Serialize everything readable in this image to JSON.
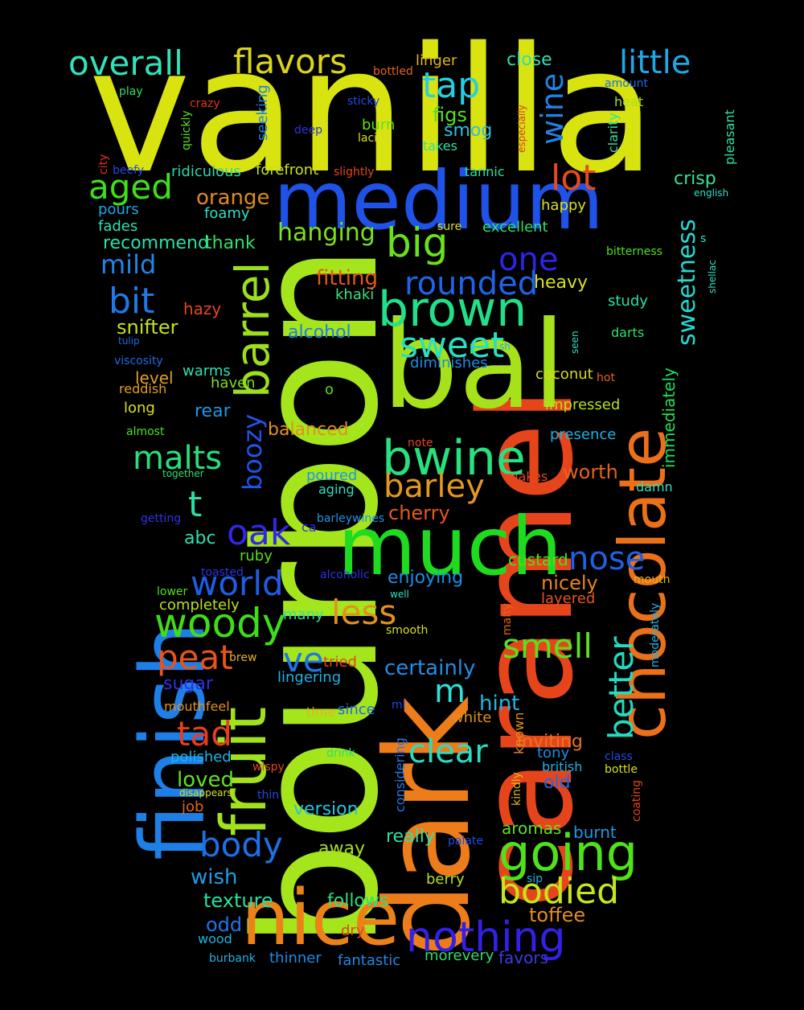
{
  "words": [
    {
      "t": "vanilla",
      "c": "#d8e310"
    },
    {
      "t": "bourbon",
      "c": "#a4e61b"
    },
    {
      "t": "caramel",
      "c": "#e6451c"
    },
    {
      "t": "dark",
      "c": "#ec7d1a"
    },
    {
      "t": "finish",
      "c": "#1e7fe6"
    },
    {
      "t": "bal",
      "c": "#a6e11b"
    },
    {
      "t": "medium",
      "c": "#1f52e6"
    },
    {
      "t": "chocolate",
      "c": "#eb7019"
    },
    {
      "t": "much",
      "c": "#1edb1f"
    },
    {
      "t": "nice",
      "c": "#ec811a"
    },
    {
      "t": "fruit",
      "c": "#a1e21c"
    },
    {
      "t": "brown",
      "c": "#22e089"
    },
    {
      "t": "bwine",
      "c": "#27e17f"
    },
    {
      "t": "sweet",
      "c": "#28dfc2"
    },
    {
      "t": "barrel",
      "c": "#9ddf1c"
    },
    {
      "t": "going",
      "c": "#4fe21a"
    },
    {
      "t": "nothing",
      "c": "#3320e6"
    },
    {
      "t": "woody",
      "c": "#3fdc1a"
    },
    {
      "t": "better",
      "c": "#22dbc1"
    },
    {
      "t": "world",
      "c": "#1e5ee6"
    },
    {
      "t": "bodied",
      "c": "#c4e61a"
    },
    {
      "t": "little",
      "c": "#1fa7e6"
    },
    {
      "t": "overall",
      "c": "#30e3bb"
    },
    {
      "t": "flavors",
      "c": "#dcd31c"
    },
    {
      "t": "big",
      "c": "#68e21a"
    },
    {
      "t": "rounded",
      "c": "#1f63e6"
    },
    {
      "t": "sweetness",
      "c": "#24dbd2"
    },
    {
      "t": "barley",
      "c": "#e39720"
    },
    {
      "t": "body",
      "c": "#1f6fe6"
    },
    {
      "t": "smell",
      "c": "#5ae11c"
    },
    {
      "t": "clear",
      "c": "#27ddc2"
    },
    {
      "t": "tap",
      "c": "#23cfe2"
    },
    {
      "t": "aged",
      "c": "#3ee01a"
    },
    {
      "t": "lot",
      "c": "#e64a1c"
    },
    {
      "t": "malts",
      "c": "#26e07b"
    },
    {
      "t": "oak",
      "c": "#3226e6"
    },
    {
      "t": "nose",
      "c": "#1f61e6"
    },
    {
      "t": "bit",
      "c": "#1f79e6"
    },
    {
      "t": "peat",
      "c": "#e6541c"
    },
    {
      "t": "tad",
      "c": "#e63d1c"
    },
    {
      "t": "less",
      "c": "#e2901e"
    },
    {
      "t": "wine",
      "c": "#2082e3"
    },
    {
      "t": "one",
      "c": "#3023e6"
    },
    {
      "t": "boozy",
      "c": "#1f54e6"
    },
    {
      "t": "ve",
      "c": "#1f75e6"
    },
    {
      "t": "t",
      "c": "#28e0a8"
    },
    {
      "t": "mild",
      "c": "#1f86e6"
    },
    {
      "t": "m",
      "c": "#2ee0d9"
    },
    {
      "t": "hanging",
      "c": "#7de11c"
    },
    {
      "t": "toffee",
      "c": "#e38c1e"
    },
    {
      "t": "snifter",
      "c": "#c8e01c"
    },
    {
      "t": "certainly",
      "c": "#1f8fe6"
    },
    {
      "t": "orange",
      "c": "#e08b1e"
    },
    {
      "t": "fitting",
      "c": "#e6571c"
    },
    {
      "t": "immediately",
      "c": "#1ee05a"
    },
    {
      "t": "hint",
      "c": "#1fb6e6"
    },
    {
      "t": "loved",
      "c": "#64e11c"
    },
    {
      "t": "close",
      "c": "#2edfb0"
    },
    {
      "t": "figs",
      "c": "#58e01c"
    },
    {
      "t": "smog",
      "c": "#2ebee0"
    },
    {
      "t": "burn",
      "c": "#5ee01c"
    },
    {
      "t": "crisp",
      "c": "#3ae096"
    },
    {
      "t": "heavy",
      "c": "#d8e01c"
    },
    {
      "t": "cherry",
      "c": "#e6581c"
    },
    {
      "t": "worth",
      "c": "#e6631c"
    },
    {
      "t": "alcohol",
      "c": "#1f7de6"
    },
    {
      "t": "enjoying",
      "c": "#1f8de6"
    },
    {
      "t": "nicely",
      "c": "#e6851c"
    },
    {
      "t": "layered",
      "c": "#e6541c"
    },
    {
      "t": "inviting",
      "c": "#e6751c"
    },
    {
      "t": "recommend",
      "c": "#29e0a8"
    },
    {
      "t": "thank",
      "c": "#2ee06a"
    },
    {
      "t": "balanced",
      "c": "#e3901e"
    },
    {
      "t": "version",
      "c": "#24c5e0"
    },
    {
      "t": "away",
      "c": "#a9e01c"
    },
    {
      "t": "really",
      "c": "#30e0a6"
    },
    {
      "t": "follows",
      "c": "#2be07a"
    },
    {
      "t": "texture",
      "c": "#28e09e"
    },
    {
      "t": "wish",
      "c": "#1f9ce6"
    },
    {
      "t": "odd",
      "c": "#1f75e6"
    },
    {
      "t": "seeking",
      "c": "#1f82e6"
    },
    {
      "t": "forefront",
      "c": "#c9e01c"
    },
    {
      "t": "ridiculous",
      "c": "#28d7a8"
    },
    {
      "t": "khaki",
      "c": "#3ae080"
    },
    {
      "t": "diminishes",
      "c": "#1f8ae6"
    },
    {
      "t": "coconut",
      "c": "#d8d81c"
    },
    {
      "t": "impressed",
      "c": "#b9e01c"
    },
    {
      "t": "presence",
      "c": "#1fb2e6"
    },
    {
      "t": "custard",
      "c": "#4fe01c"
    },
    {
      "t": "aromas",
      "c": "#64e01c"
    },
    {
      "t": "burnt",
      "c": "#1f96e6"
    },
    {
      "t": "berry",
      "c": "#b7e01c"
    },
    {
      "t": "old",
      "c": "#1f6ae6"
    },
    {
      "t": "tony",
      "c": "#1f8ae6"
    },
    {
      "t": "favors",
      "c": "#3a3ae6"
    },
    {
      "t": "morevery",
      "c": "#2edf6a"
    },
    {
      "t": "fantastic",
      "c": "#1f8ae6"
    },
    {
      "t": "thinner",
      "c": "#1f8ae6"
    },
    {
      "t": "level",
      "c": "#e3a01e"
    },
    {
      "t": "warms",
      "c": "#2ee0b0"
    },
    {
      "t": "haven",
      "c": "#7be01c"
    },
    {
      "t": "rear",
      "c": "#1f96e6"
    },
    {
      "t": "long",
      "c": "#d8e01c"
    },
    {
      "t": "abc",
      "c": "#2ee0b0"
    },
    {
      "t": "ruby",
      "c": "#52e01c"
    },
    {
      "t": "completely",
      "c": "#bde01c"
    },
    {
      "t": "many",
      "c": "#2ee0a6"
    },
    {
      "t": "sugar",
      "c": "#3030e6"
    },
    {
      "t": "lingering",
      "c": "#1fb2e6"
    },
    {
      "t": "since",
      "c": "#1f6ae6"
    },
    {
      "t": "considering",
      "c": "#1f78e6"
    },
    {
      "t": "polished",
      "c": "#1fb2e6"
    },
    {
      "t": "job",
      "c": "#e6631c"
    },
    {
      "t": "excellent",
      "c": "#2ee06a"
    },
    {
      "t": "happy",
      "c": "#d8e01c"
    },
    {
      "t": "pours",
      "c": "#1fa8e6"
    },
    {
      "t": "fades",
      "c": "#2ee0b0"
    },
    {
      "t": "foamy",
      "c": "#2ee0c2"
    },
    {
      "t": "hazy",
      "c": "#e6451c"
    },
    {
      "t": "reddish",
      "c": "#e3a01e"
    },
    {
      "t": "linger",
      "c": "#e3b41e"
    },
    {
      "t": "heat",
      "c": "#a6e01c"
    },
    {
      "t": "study",
      "c": "#2ee0a6"
    },
    {
      "t": "pleasant",
      "c": "#2ee0a6"
    },
    {
      "t": "clarity",
      "c": "#2ee0a6"
    },
    {
      "t": "moderately",
      "c": "#1fb2e6"
    },
    {
      "t": "bitterness",
      "c": "#4fe01c"
    },
    {
      "t": "darts",
      "c": "#2ee06a"
    },
    {
      "t": "quickly",
      "c": "#52e01c"
    },
    {
      "t": "takes",
      "c": "#2ee0a6"
    },
    {
      "t": "tannic",
      "c": "#2ee0a6"
    },
    {
      "t": "lacing",
      "c": "#d8e01c"
    },
    {
      "t": "bottled",
      "c": "#e6631c"
    },
    {
      "t": "sticky",
      "c": "#1f4ae6"
    },
    {
      "t": "deep",
      "c": "#3030e6"
    },
    {
      "t": "crazy",
      "c": "#e6331c"
    },
    {
      "t": "play",
      "c": "#2ee06a"
    },
    {
      "t": "city",
      "c": "#e6331c"
    },
    {
      "t": "beefy",
      "c": "#1f4ae6"
    },
    {
      "t": "slightly",
      "c": "#e6451c"
    },
    {
      "t": "especially",
      "c": "#e6331c"
    },
    {
      "t": "amount",
      "c": "#1f6ae6"
    },
    {
      "t": "english",
      "c": "#2ee0c2"
    },
    {
      "t": "shellac",
      "c": "#2ee0c2"
    },
    {
      "t": "s",
      "c": "#2ee0c2"
    },
    {
      "t": "seen",
      "c": "#2ee0c2"
    },
    {
      "t": "sh",
      "c": "#1fb2e6"
    },
    {
      "t": "hot",
      "c": "#e6631c"
    },
    {
      "t": "tulip",
      "c": "#1f6ae6"
    },
    {
      "t": "viscosity",
      "c": "#1f6ae6"
    },
    {
      "t": "almost",
      "c": "#52e01c"
    },
    {
      "t": "together",
      "c": "#2ee06a"
    },
    {
      "t": "getting",
      "c": "#3030e6"
    },
    {
      "t": "note",
      "c": "#e6451c"
    },
    {
      "t": "o",
      "c": "#52e01c"
    },
    {
      "t": "poured",
      "c": "#1f96e6"
    },
    {
      "t": "aging",
      "c": "#2ee0c2"
    },
    {
      "t": "makes",
      "c": "#e6451c"
    },
    {
      "t": "damn",
      "c": "#2ee0c2"
    },
    {
      "t": "barleywines",
      "c": "#1f96e6"
    },
    {
      "t": "ca",
      "c": "#3030e6"
    },
    {
      "t": "toasted",
      "c": "#3030e6"
    },
    {
      "t": "alcoholic",
      "c": "#3030e6"
    },
    {
      "t": "lower",
      "c": "#52e01c"
    },
    {
      "t": "well",
      "c": "#2ee0c2"
    },
    {
      "t": "mouth",
      "c": "#e3b41e"
    },
    {
      "t": "malty",
      "c": "#e6631c"
    },
    {
      "t": "smooth",
      "c": "#d8e01c"
    },
    {
      "t": "brew",
      "c": "#e3b41e"
    },
    {
      "t": "tried",
      "c": "#e6451c"
    },
    {
      "t": "mouthfeel",
      "c": "#e3901e"
    },
    {
      "t": "time",
      "c": "#e3b41e"
    },
    {
      "t": "ml",
      "c": "#1f4ae6"
    },
    {
      "t": "white",
      "c": "#e3901e"
    },
    {
      "t": "drink",
      "c": "#2ee06a"
    },
    {
      "t": "wispy",
      "c": "#e6451c"
    },
    {
      "t": "disappears",
      "c": "#d8e01c"
    },
    {
      "t": "thin",
      "c": "#1f4ae6"
    },
    {
      "t": "known",
      "c": "#e3901e"
    },
    {
      "t": "kindly",
      "c": "#e3b41e"
    },
    {
      "t": "british",
      "c": "#1fb2e6"
    },
    {
      "t": "class",
      "c": "#1f4ae6"
    },
    {
      "t": "bottle",
      "c": "#d8e01c"
    },
    {
      "t": "coating",
      "c": "#e6451c"
    },
    {
      "t": "palate",
      "c": "#1f4ae6"
    },
    {
      "t": "sip",
      "c": "#1fb2e6"
    },
    {
      "t": "dry",
      "c": "#e6451c"
    },
    {
      "t": "wood",
      "c": "#1fb2e6"
    },
    {
      "t": "burbank",
      "c": "#1fb2e6"
    },
    {
      "t": "sure",
      "c": "#d8e01c"
    }
  ]
}
